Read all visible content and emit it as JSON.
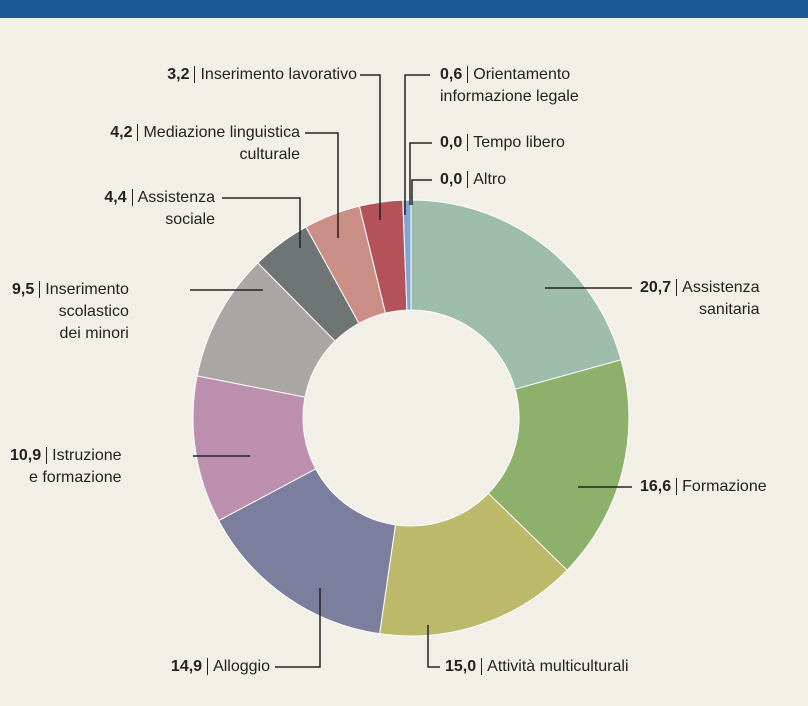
{
  "chart_data": {
    "type": "donut",
    "categories": [
      "Assistenza\nsanitaria",
      "Formazione",
      "Attività multiculturali",
      "Alloggio",
      "Istruzione\ne formazione",
      "Inserimento\nscolastico\ndei minori",
      "Assistenza\nsociale",
      "Mediazione linguistica\nculturale",
      "Inserimento lavorativo",
      "Orientamento\ninformazione legale",
      "Tempo libero",
      "Altro"
    ],
    "values": [
      20.7,
      16.6,
      15.0,
      14.9,
      10.9,
      9.5,
      4.4,
      4.2,
      3.2,
      0.6,
      0.0,
      0.0
    ],
    "value_labels": [
      "20,7",
      "16,6",
      "15,0",
      "14,9",
      "10,9",
      "9,5",
      "4,4",
      "4,2",
      "3,2",
      "0,6",
      "0,0",
      "0,0"
    ],
    "colors": [
      "#9dbcac",
      "#8db06b",
      "#bdb96b",
      "#7b7e9c",
      "#bd8fae",
      "#aaa6a4",
      "#6f7574",
      "#c98e85",
      "#b4525a",
      "#7fa6d3",
      "#9db5d0",
      "#c8c8c8"
    ]
  }
}
